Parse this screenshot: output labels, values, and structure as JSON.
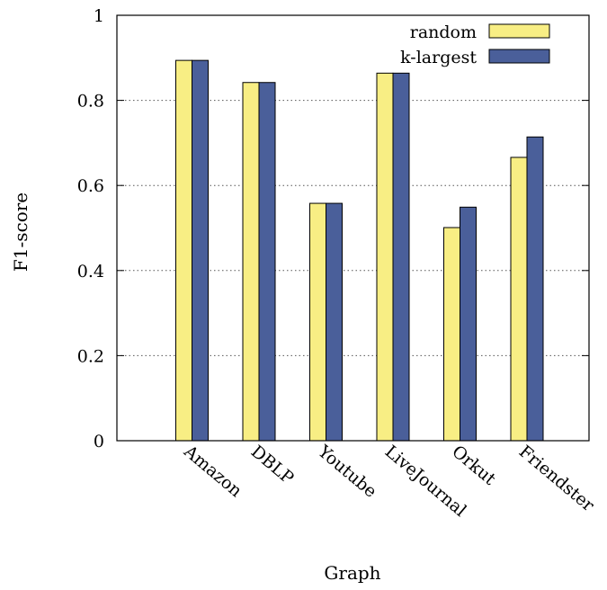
{
  "chart_data": {
    "type": "bar",
    "title": "",
    "xlabel": "Graph",
    "ylabel": "F1-score",
    "ylim": [
      0,
      1
    ],
    "yticks": [
      "0",
      "0.2",
      "0.4",
      "0.6",
      "0.8",
      "1"
    ],
    "grid": "horizontal-dotted",
    "legend_position": "top-right",
    "categories": [
      "Amazon",
      "DBLP",
      "Youtube",
      "LiveJournal",
      "Orkut",
      "Friendster"
    ],
    "series": [
      {
        "name": "random",
        "color": "#f8ee84",
        "values": [
          0.894,
          0.842,
          0.558,
          0.864,
          0.501,
          0.666
        ]
      },
      {
        "name": "k-largest",
        "color": "#4a5f9a",
        "values": [
          0.894,
          0.842,
          0.558,
          0.864,
          0.549,
          0.714
        ]
      }
    ]
  }
}
